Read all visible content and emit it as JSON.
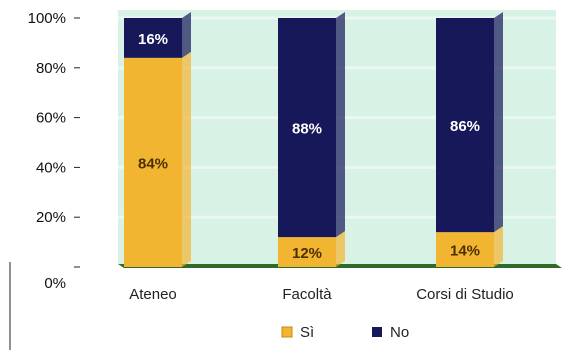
{
  "chart_data": {
    "type": "bar",
    "stacked": true,
    "categories": [
      "Ateneo",
      "Facoltà",
      "Corsi di Studio"
    ],
    "series": [
      {
        "name": "Sì",
        "values": [
          84,
          12,
          14
        ],
        "color": "#f2b531",
        "label_color": "#4a3000"
      },
      {
        "name": "No",
        "values": [
          16,
          88,
          86
        ],
        "color": "#16185a",
        "label_color": "#ffffff"
      }
    ],
    "data_labels": [
      [
        "84%",
        "12%",
        "14%"
      ],
      [
        "16%",
        "88%",
        "86%"
      ]
    ],
    "y_ticks": [
      "0%",
      "20%",
      "40%",
      "60%",
      "80%",
      "100%"
    ],
    "tick_values": [
      0,
      20,
      40,
      60,
      80,
      100
    ],
    "ylim": [
      0,
      100
    ],
    "grid": true,
    "legend_position": "bottom",
    "colors": {
      "plot_background": "#d9f2e6",
      "grid_line": "#eaf8f1",
      "floor": "#2e6a2a"
    }
  }
}
